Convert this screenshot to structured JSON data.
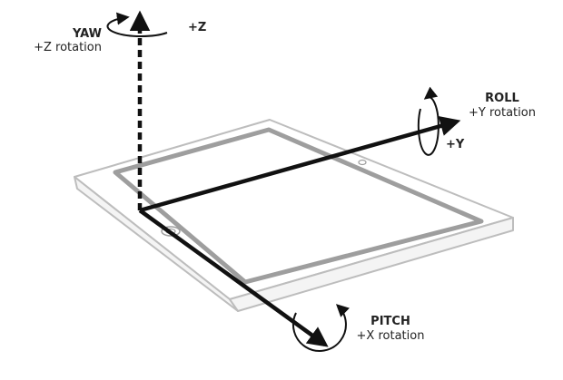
{
  "labels": {
    "yaw": {
      "title": "YAW",
      "subtitle": "+Z rotation",
      "axis": "+Z"
    },
    "roll": {
      "title": "ROLL",
      "subtitle": "+Y rotation",
      "axis": "+Y"
    },
    "pitch": {
      "title": "PITCH",
      "subtitle": "+X rotation"
    }
  },
  "colors": {
    "axis": "#111111",
    "device_outline": "#bdbdbd",
    "screen_border": "#9e9e9e",
    "text": "#222222"
  },
  "icons": [
    "yaw-rotation-arrow-icon",
    "roll-rotation-arrow-icon",
    "pitch-rotation-arrow-icon",
    "home-button-icon",
    "camera-icon"
  ]
}
